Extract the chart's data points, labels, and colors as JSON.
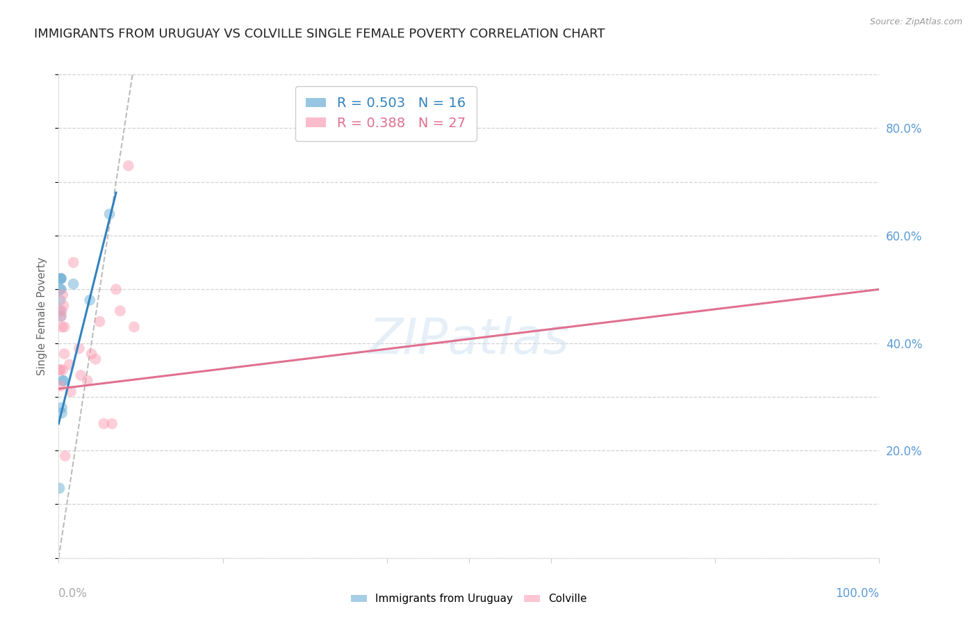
{
  "title": "IMMIGRANTS FROM URUGUAY VS COLVILLE SINGLE FEMALE POVERTY CORRELATION CHART",
  "source": "Source: ZipAtlas.com",
  "ylabel": "Single Female Poverty",
  "background_color": "#ffffff",
  "grid_color": "#cccccc",
  "watermark_text": "ZIPatlas",
  "legend1_label": "R = 0.503   N = 16",
  "legend2_label": "R = 0.388   N = 27",
  "blue_color": "#6baed6",
  "pink_color": "#fa9fb5",
  "blue_line_color": "#3182bd",
  "pink_line_color": "#e07090",
  "dashed_line_color": "#bbbbbb",
  "uruguay_points_x": [
    0.001,
    0.002,
    0.002,
    0.002,
    0.002,
    0.003,
    0.003,
    0.003,
    0.003,
    0.004,
    0.004,
    0.005,
    0.006,
    0.018,
    0.038,
    0.062
  ],
  "uruguay_points_y": [
    0.13,
    0.5,
    0.52,
    0.48,
    0.46,
    0.45,
    0.5,
    0.52,
    0.52,
    0.27,
    0.28,
    0.33,
    0.33,
    0.51,
    0.48,
    0.64
  ],
  "colville_points_x": [
    0.001,
    0.002,
    0.002,
    0.003,
    0.004,
    0.004,
    0.005,
    0.005,
    0.006,
    0.007,
    0.007,
    0.008,
    0.013,
    0.015,
    0.018,
    0.025,
    0.027,
    0.035,
    0.04,
    0.045,
    0.05,
    0.055,
    0.065,
    0.07,
    0.075,
    0.085,
    0.092
  ],
  "colville_points_y": [
    0.35,
    0.32,
    0.35,
    0.45,
    0.43,
    0.46,
    0.35,
    0.49,
    0.47,
    0.43,
    0.38,
    0.19,
    0.36,
    0.31,
    0.55,
    0.39,
    0.34,
    0.33,
    0.38,
    0.37,
    0.44,
    0.25,
    0.25,
    0.5,
    0.46,
    0.73,
    0.43
  ],
  "xlim": [
    0.0,
    1.0
  ],
  "ylim": [
    0.0,
    0.9
  ],
  "blue_line_x": [
    0.0,
    0.07
  ],
  "blue_line_y": [
    0.25,
    0.68
  ],
  "pink_line_x": [
    0.0,
    1.0
  ],
  "pink_line_y": [
    0.315,
    0.5
  ],
  "diag_line_x": [
    0.0,
    0.09
  ],
  "diag_line_y": [
    0.0,
    0.9
  ],
  "title_fontsize": 13,
  "axis_label_fontsize": 11,
  "tick_fontsize": 12,
  "legend_fontsize": 14,
  "marker_size": 130,
  "right_ytick_color": "#5b9bd5",
  "left_label_color": "#666666"
}
